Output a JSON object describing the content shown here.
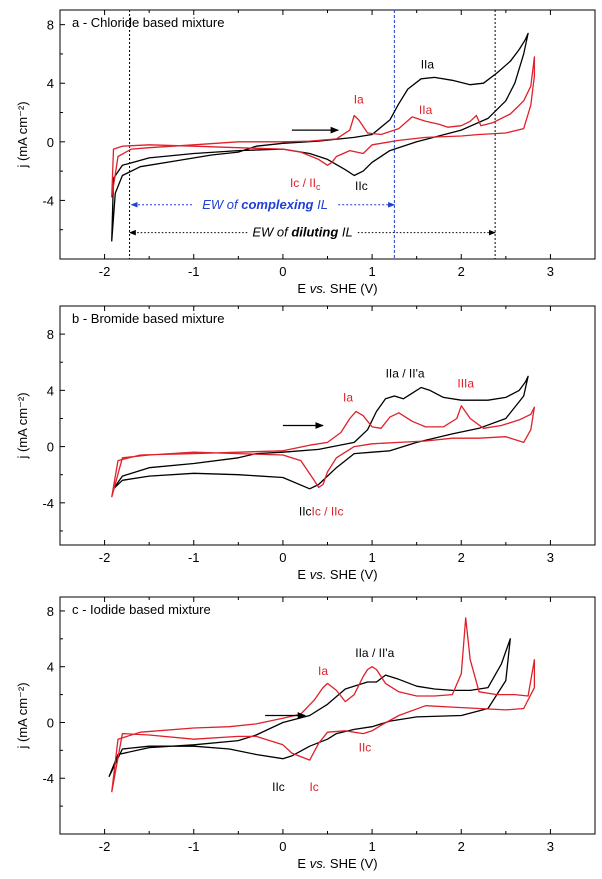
{
  "chart_data": [
    {
      "type": "line",
      "panel_title": "a - Chloride based mixture",
      "xlabel_prefix": "E ",
      "xlabel_italic": "vs.",
      "xlabel_suffix": " SHE (V)",
      "ylabel": "j (mA cm⁻²)",
      "xlim": [
        -2.5,
        3.5
      ],
      "ylim": [
        -8,
        9
      ],
      "xticks": [
        -2,
        -1,
        0,
        1,
        2,
        3
      ],
      "yticks": [
        -4,
        0,
        4,
        8
      ],
      "xticklabels": [
        "-2",
        "-1",
        "0",
        "1",
        "2",
        "3"
      ],
      "yticklabels": [
        "-4",
        "0",
        "4",
        "8"
      ],
      "series": [
        {
          "color": "#000000",
          "x": [
            -1.92,
            -1.88,
            -1.8,
            -1.6,
            -1.2,
            -0.8,
            -0.5,
            -0.3,
            0,
            0.4,
            0.8,
            1.0,
            1.2,
            1.3,
            1.4,
            1.55,
            1.7,
            1.9,
            2.1,
            2.25,
            2.4,
            2.55,
            2.65,
            2.72,
            2.75,
            2.7,
            2.6,
            2.5,
            2.3,
            2.0,
            1.5,
            1.2,
            1.0,
            0.9,
            0.8,
            0.7,
            0.5,
            0.3,
            0,
            -0.5,
            -1,
            -1.5,
            -1.8,
            -1.9,
            -1.92
          ],
          "y": [
            -6.8,
            -3.5,
            -2.3,
            -1.7,
            -1.3,
            -0.9,
            -0.7,
            -0.3,
            -0.1,
            0.05,
            0.3,
            0.5,
            1.5,
            2.6,
            3.6,
            4.3,
            4.4,
            4.2,
            3.9,
            4.0,
            4.7,
            5.5,
            6.3,
            7.0,
            7.4,
            6.0,
            4.0,
            2.8,
            1.6,
            0.8,
            0.0,
            -0.6,
            -1.4,
            -2.0,
            -2.3,
            -1.9,
            -1.2,
            -0.8,
            -0.5,
            -0.6,
            -0.8,
            -1.1,
            -1.6,
            -2.5,
            -6.8
          ]
        },
        {
          "color": "#e0202a",
          "x": [
            -1.92,
            -1.85,
            -1.7,
            -1.5,
            -1.0,
            -0.5,
            -0.3,
            0,
            0.3,
            0.6,
            0.75,
            0.8,
            0.85,
            0.95,
            1.1,
            1.3,
            1.45,
            1.6,
            1.75,
            1.85,
            2.0,
            2.1,
            2.17,
            2.22,
            2.35,
            2.55,
            2.7,
            2.78,
            2.82,
            2.82,
            2.78,
            2.7,
            2.5,
            2.2,
            2.0,
            1.6,
            1.3,
            1.0,
            0.9,
            0.75,
            0.6,
            0.55,
            0.5,
            0.4,
            0.2,
            0,
            -0.5,
            -1,
            -1.5,
            -1.8,
            -1.9,
            -1.92
          ],
          "y": [
            -3.8,
            -1.0,
            -0.5,
            -0.4,
            -0.2,
            0.0,
            0.0,
            0.0,
            0.05,
            0.2,
            0.8,
            1.8,
            1.5,
            0.6,
            0.5,
            0.9,
            1.7,
            1.4,
            1.2,
            1.0,
            1.1,
            1.4,
            1.8,
            1.1,
            1.3,
            1.9,
            2.8,
            3.8,
            5.8,
            4.5,
            2.5,
            0.9,
            0.6,
            0.5,
            0.4,
            0.3,
            0.1,
            -0.2,
            -0.8,
            -0.6,
            -1.0,
            -1.4,
            -1.6,
            -1.2,
            -0.7,
            -0.5,
            -0.4,
            -0.3,
            -0.2,
            -0.3,
            -0.5,
            -3.8
          ]
        }
      ],
      "annotations": [
        {
          "text": "Ia",
          "x": 0.85,
          "y": 2.6,
          "color": "#e0202a"
        },
        {
          "text": "IIa",
          "x": 1.6,
          "y": 1.9,
          "color": "#e0202a"
        },
        {
          "text": "IIa",
          "x": 1.62,
          "y": 5.0,
          "color": "#000000"
        },
        {
          "text": "Ic / II",
          "sub": "c",
          "x": 0.25,
          "y": -3.1,
          "color": "#e0202a"
        },
        {
          "text": "IIc",
          "x": 0.88,
          "y": -3.3,
          "color": "#000000"
        }
      ],
      "windows": [
        {
          "label_prefix": "EW of ",
          "label_bold": "complexing",
          "label_suffix": " IL",
          "color": "#1f3fd6",
          "x1": -1.7,
          "x2": 1.25,
          "y": -4.3,
          "label_x": -0.2,
          "label_y": -4.3
        },
        {
          "label_prefix": "EW of  ",
          "label_bold": "diluting",
          "label_suffix": " IL",
          "color": "#000000",
          "x1": -1.72,
          "x2": 2.38,
          "y": -6.2,
          "label_x": 0.22,
          "label_y": -6.2
        }
      ],
      "arrow": {
        "x1": 0.1,
        "x2": 0.62,
        "y": 0.8
      }
    },
    {
      "type": "line",
      "panel_title": "b - Bromide based mixture",
      "xlabel_prefix": "E ",
      "xlabel_italic": "vs.",
      "xlabel_suffix": " SHE (V)",
      "ylabel": "j (mA cm⁻²)",
      "xlim": [
        -2.5,
        3.5
      ],
      "ylim": [
        -7,
        10
      ],
      "xticks": [
        -2,
        -1,
        0,
        1,
        2,
        3
      ],
      "yticks": [
        -4,
        0,
        4,
        8
      ],
      "xticklabels": [
        "-2",
        "-1",
        "0",
        "1",
        "2",
        "3"
      ],
      "yticklabels": [
        "-4",
        "0",
        "4",
        "8"
      ],
      "series": [
        {
          "color": "#000000",
          "x": [
            -1.9,
            -1.8,
            -1.5,
            -1.0,
            -0.5,
            -0.3,
            0,
            0.4,
            0.8,
            0.95,
            1.05,
            1.15,
            1.25,
            1.35,
            1.45,
            1.55,
            1.65,
            1.8,
            2.0,
            2.3,
            2.5,
            2.65,
            2.72,
            2.75,
            2.7,
            2.5,
            2.2,
            1.9,
            1.5,
            1.2,
            1.0,
            0.8,
            0.6,
            0.4,
            0.3,
            0,
            -0.5,
            -1,
            -1.5,
            -1.8,
            -1.9
          ],
          "y": [
            -3.0,
            -2.1,
            -1.5,
            -1.2,
            -0.8,
            -0.5,
            -0.4,
            -0.2,
            0.3,
            1.2,
            2.5,
            3.4,
            3.6,
            3.4,
            3.8,
            4.2,
            4.0,
            3.5,
            3.3,
            3.3,
            3.5,
            4.0,
            4.6,
            5.0,
            3.6,
            2.0,
            1.3,
            0.9,
            0.3,
            -0.3,
            -0.4,
            -0.5,
            -1.5,
            -2.7,
            -3.0,
            -2.2,
            -2.0,
            -1.9,
            -2.1,
            -2.4,
            -3.0
          ]
        },
        {
          "color": "#e0202a",
          "x": [
            -1.92,
            -1.85,
            -1.6,
            -1.0,
            -0.5,
            0,
            0.3,
            0.5,
            0.65,
            0.75,
            0.82,
            0.9,
            1.0,
            1.1,
            1.2,
            1.3,
            1.45,
            1.6,
            1.8,
            1.95,
            2.0,
            2.1,
            2.25,
            2.45,
            2.65,
            2.78,
            2.82,
            2.78,
            2.7,
            2.5,
            2.2,
            1.9,
            1.6,
            1.3,
            1.0,
            0.8,
            0.6,
            0.5,
            0.45,
            0.4,
            0.35,
            0.2,
            0,
            -0.5,
            -1,
            -1.5,
            -1.8,
            -1.92
          ],
          "y": [
            -3.6,
            -1.0,
            -0.6,
            -0.5,
            -0.4,
            -0.3,
            0.1,
            0.3,
            1.0,
            2.0,
            2.5,
            2.2,
            1.4,
            1.3,
            2.1,
            2.4,
            1.8,
            1.4,
            1.4,
            2.0,
            2.9,
            2.0,
            1.3,
            1.5,
            1.9,
            2.3,
            2.8,
            1.2,
            0.3,
            0.7,
            0.6,
            0.6,
            0.4,
            0.3,
            0.2,
            0.0,
            -0.8,
            -1.8,
            -2.7,
            -2.9,
            -2.4,
            -1.0,
            -0.6,
            -0.5,
            -0.4,
            -0.6,
            -0.8,
            -3.6
          ]
        }
      ],
      "annotations": [
        {
          "text": "Ia",
          "x": 0.73,
          "y": 3.2,
          "color": "#e0202a"
        },
        {
          "text": "IIa / II'a",
          "x": 1.37,
          "y": 4.9,
          "color": "#000000"
        },
        {
          "text": "IIIa",
          "x": 2.05,
          "y": 4.2,
          "color": "#e0202a"
        },
        {
          "text": "IIc",
          "x": 0.25,
          "y": -4.9,
          "color": "#000000"
        },
        {
          "text": "Ic / IIc",
          "x": 0.5,
          "y": -4.9,
          "color": "#e0202a"
        }
      ],
      "arrow": {
        "x1": 0.0,
        "x2": 0.45,
        "y": 1.5
      }
    },
    {
      "type": "line",
      "panel_title": "c - Iodide based mixture",
      "xlabel_prefix": "E ",
      "xlabel_italic": "vs.",
      "xlabel_suffix": " SHE (V)",
      "ylabel": "j (mA cm⁻²)",
      "xlim": [
        -2.5,
        3.5
      ],
      "ylim": [
        -8,
        9
      ],
      "xticks": [
        -2,
        -1,
        0,
        1,
        2,
        3
      ],
      "yticks": [
        -4,
        0,
        4,
        8
      ],
      "xticklabels": [
        "-2",
        "-1",
        "0",
        "1",
        "2",
        "3"
      ],
      "yticklabels": [
        "-4",
        "0",
        "4",
        "8"
      ],
      "series": [
        {
          "color": "#000000",
          "x": [
            -1.95,
            -1.85,
            -1.5,
            -1.0,
            -0.5,
            -0.3,
            0,
            0.3,
            0.5,
            0.7,
            0.85,
            0.95,
            1.05,
            1.15,
            1.3,
            1.5,
            1.7,
            1.9,
            2.1,
            2.3,
            2.45,
            2.55,
            2.5,
            2.3,
            2.0,
            1.5,
            1.2,
            1.0,
            0.8,
            0.6,
            0.5,
            0.3,
            0.1,
            0,
            -0.3,
            -0.6,
            -1.0,
            -1.5,
            -1.8,
            -1.95
          ],
          "y": [
            -3.9,
            -2.3,
            -1.8,
            -1.6,
            -1.3,
            -0.9,
            0.0,
            0.5,
            1.3,
            2.4,
            2.7,
            2.9,
            2.9,
            3.4,
            3.1,
            2.6,
            2.4,
            2.3,
            2.3,
            2.5,
            4.2,
            6.0,
            3.0,
            1.0,
            0.5,
            0.4,
            0.1,
            -0.3,
            -0.5,
            -0.8,
            -1.2,
            -1.7,
            -2.4,
            -2.6,
            -2.3,
            -1.9,
            -1.7,
            -1.7,
            -1.9,
            -3.9
          ]
        },
        {
          "color": "#e0202a",
          "x": [
            -1.92,
            -1.85,
            -1.6,
            -1.0,
            -0.6,
            -0.3,
            0,
            0.2,
            0.35,
            0.45,
            0.5,
            0.6,
            0.7,
            0.8,
            0.9,
            0.95,
            1.0,
            1.05,
            1.15,
            1.3,
            1.5,
            1.7,
            1.9,
            2.0,
            2.05,
            2.1,
            2.2,
            2.4,
            2.6,
            2.75,
            2.82,
            2.82,
            2.7,
            2.5,
            2.2,
            1.9,
            1.6,
            1.3,
            1.1,
            1.0,
            0.9,
            0.7,
            0.5,
            0.4,
            0.3,
            0.1,
            0,
            -0.3,
            -0.5,
            -1.0,
            -1.5,
            -1.8,
            -1.92
          ],
          "y": [
            -5.0,
            -1.2,
            -0.7,
            -0.4,
            -0.3,
            -0.1,
            0.3,
            0.6,
            1.6,
            2.5,
            2.8,
            2.3,
            1.5,
            2.0,
            3.3,
            3.8,
            4.0,
            3.8,
            2.8,
            2.2,
            1.9,
            1.9,
            2.0,
            3.5,
            7.5,
            4.5,
            2.2,
            2.0,
            2.0,
            1.9,
            4.5,
            2.5,
            1.0,
            0.9,
            1.0,
            1.1,
            1.2,
            0.5,
            -0.2,
            -0.6,
            -0.8,
            -0.6,
            -0.7,
            -1.5,
            -2.7,
            -2.2,
            -1.6,
            -1.0,
            -1.0,
            -1.2,
            -0.9,
            -0.8,
            -5.0
          ]
        }
      ],
      "annotations": [
        {
          "text": "Ia",
          "x": 0.45,
          "y": 3.4,
          "color": "#e0202a"
        },
        {
          "text": "IIa / II'a",
          "x": 1.03,
          "y": 4.7,
          "color": "#000000"
        },
        {
          "text": "IIc",
          "x": 0.92,
          "y": -2.1,
          "color": "#e0202a"
        },
        {
          "text": "IIc",
          "x": -0.05,
          "y": -4.9,
          "color": "#000000"
        },
        {
          "text": "Ic",
          "x": 0.35,
          "y": -4.9,
          "color": "#e0202a"
        }
      ],
      "arrow": {
        "x1": -0.2,
        "x2": 0.25,
        "y": 0.5
      }
    }
  ]
}
